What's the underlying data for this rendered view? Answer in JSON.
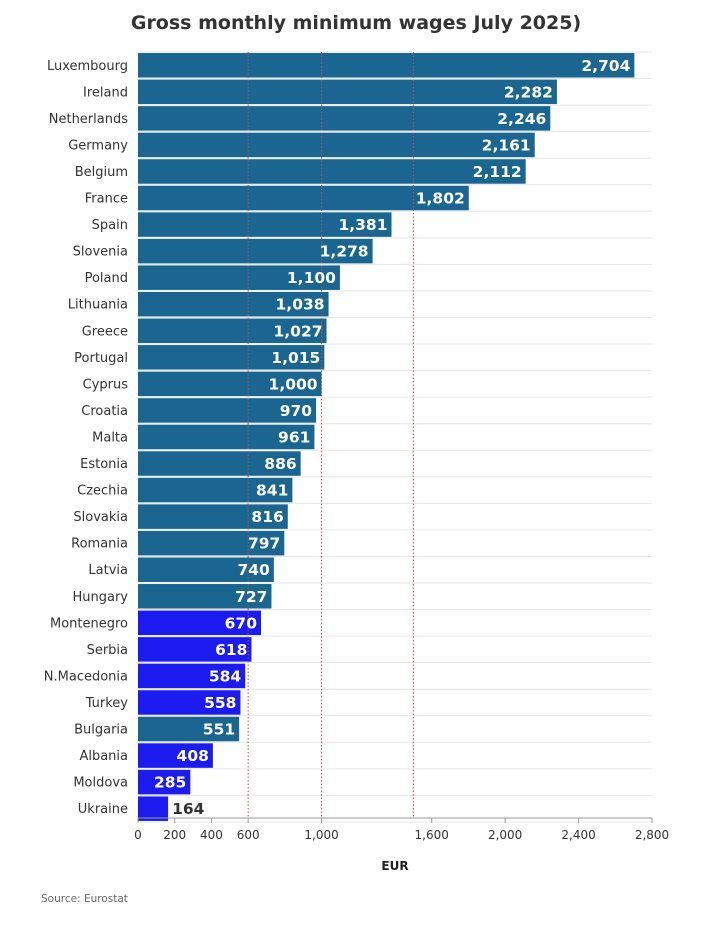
{
  "chart_data": {
    "type": "bar",
    "orientation": "horizontal",
    "title": "Gross monthly minimum wages July 2025)",
    "xlabel": "EUR",
    "ylabel": "",
    "xlim": [
      0,
      2800
    ],
    "x_ticks": [
      {
        "value": 0,
        "label": "0"
      },
      {
        "value": 200,
        "label": "200"
      },
      {
        "value": 400,
        "label": "400"
      },
      {
        "value": 600,
        "label": "600"
      },
      {
        "value": 1000,
        "label": "1,000"
      },
      {
        "value": 1600,
        "label": "1,600"
      },
      {
        "value": 2000,
        "label": "2,000"
      },
      {
        "value": 2400,
        "label": "2,400"
      },
      {
        "value": 2800,
        "label": "2,800"
      }
    ],
    "reference_lines": [
      600,
      1000,
      1500
    ],
    "grid": true,
    "categories": [
      "Luxembourg",
      "Ireland",
      "Netherlands",
      "Germany",
      "Belgium",
      "France",
      "Spain",
      "Slovenia",
      "Poland",
      "Lithuania",
      "Greece",
      "Portugal",
      "Cyprus",
      "Croatia",
      "Malta",
      "Estonia",
      "Czechia",
      "Slovakia",
      "Romania",
      "Latvia",
      "Hungary",
      "Montenegro",
      "Serbia",
      "N.Macedonia",
      "Turkey",
      "Bulgaria",
      "Albania",
      "Moldova",
      "Ukraine"
    ],
    "values": [
      2704,
      2282,
      2246,
      2161,
      2112,
      1802,
      1381,
      1278,
      1100,
      1038,
      1027,
      1015,
      1000,
      970,
      961,
      886,
      841,
      816,
      797,
      740,
      727,
      670,
      618,
      584,
      558,
      551,
      408,
      285,
      164
    ],
    "value_labels": [
      "2,704",
      "2,282",
      "2,246",
      "2,161",
      "2,112",
      "1,802",
      "1,381",
      "1,278",
      "1,100",
      "1,038",
      "1,027",
      "1,015",
      "1,000",
      "970",
      "961",
      "886",
      "841",
      "816",
      "797",
      "740",
      "727",
      "670",
      "618",
      "584",
      "558",
      "551",
      "408",
      "285",
      "164"
    ],
    "groups": [
      "EU",
      "EU",
      "EU",
      "EU",
      "EU",
      "EU",
      "EU",
      "EU",
      "EU",
      "EU",
      "EU",
      "EU",
      "EU",
      "EU",
      "EU",
      "EU",
      "EU",
      "EU",
      "EU",
      "EU",
      "EU",
      "non-EU",
      "non-EU",
      "non-EU",
      "non-EU",
      "EU",
      "non-EU",
      "non-EU",
      "non-EU"
    ],
    "colors": {
      "EU": "#1a6690",
      "non-EU": "#1c1cf0",
      "reference_line": "#c0504d",
      "grid": "#e6e6e6"
    }
  },
  "source": "Source: Eurostat"
}
